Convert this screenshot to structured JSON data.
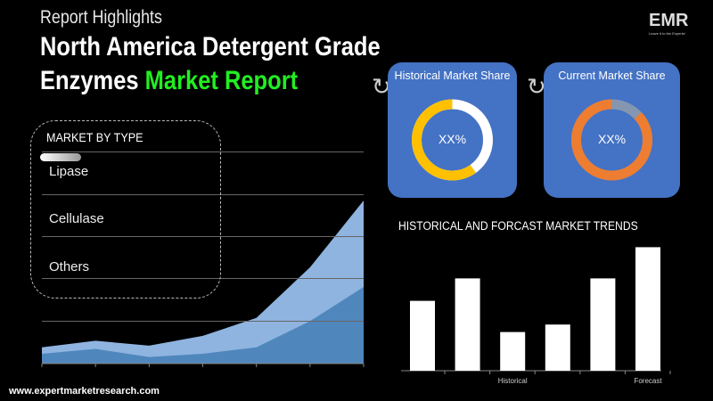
{
  "header": {
    "subtitle": "Report Highlights",
    "title_line1": "North America Detergent Grade",
    "title_line2_white": "Enzymes",
    "title_line2_green": "Market Report"
  },
  "logo": {
    "text": "EMR",
    "tagline": "Leave it to the Experts!"
  },
  "market_by_type": {
    "heading": "MARKET BY TYPE",
    "items": [
      "Lipase",
      "Cellulase",
      "Others"
    ]
  },
  "cards": [
    {
      "title": "Historical Market Share",
      "value": "XX%",
      "share": 0.6,
      "color": "#ffc000",
      "rest_color": "#ffffff"
    },
    {
      "title": "Current Market Share",
      "value": "XX%",
      "share": 0.87,
      "color": "#ed7d31",
      "rest_color": "#8496b0"
    }
  ],
  "colors": {
    "card_bg": "#4472c4",
    "accent_green": "#22ee22",
    "area_light": "#8fb4e0",
    "area_dark": "#4f87bd"
  },
  "area_chart": {
    "light": [
      10,
      14,
      11,
      17,
      28,
      59,
      100
    ],
    "dark": [
      6,
      9,
      4,
      6,
      10,
      26,
      47
    ]
  },
  "bar_chart": {
    "title": "HISTORICAL AND FORCAST MARKET TRENDS",
    "values": [
      56,
      74,
      31,
      37,
      74,
      99
    ],
    "labels": [
      "",
      "",
      "Historical",
      "",
      "",
      "Forecast"
    ]
  },
  "footer": {
    "url": "www.expertmarketresearch.com"
  }
}
